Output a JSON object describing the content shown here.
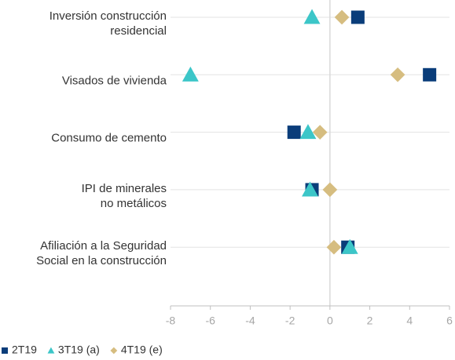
{
  "chart_data": {
    "type": "dot",
    "categories": [
      [
        "Inversión construcción",
        "residencial"
      ],
      [
        "Visados de vivienda"
      ],
      [
        "Consumo de cemento"
      ],
      [
        "IPI de minerales",
        "no metálicos"
      ],
      [
        "Afiliación a la Seguridad",
        "Social en la construcción"
      ]
    ],
    "series": [
      {
        "name": "2T19",
        "color": "#0a3d7a",
        "marker": "square",
        "values": [
          1.4,
          5.0,
          -1.8,
          -0.9,
          0.9
        ]
      },
      {
        "name": "3T19 (a)",
        "color": "#3cc6c8",
        "marker": "triangle",
        "values": [
          -0.9,
          -7.0,
          -1.1,
          -1.0,
          1.0
        ]
      },
      {
        "name": "4T19 (e)",
        "color": "#d6bd80",
        "marker": "diamond",
        "values": [
          0.6,
          3.4,
          -0.5,
          0.0,
          0.2
        ]
      }
    ],
    "xlim": [
      -8,
      6
    ],
    "xticks": [
      -8,
      -6,
      -4,
      -2,
      0,
      2,
      4,
      6
    ],
    "grid": true,
    "legend": "bottom"
  }
}
